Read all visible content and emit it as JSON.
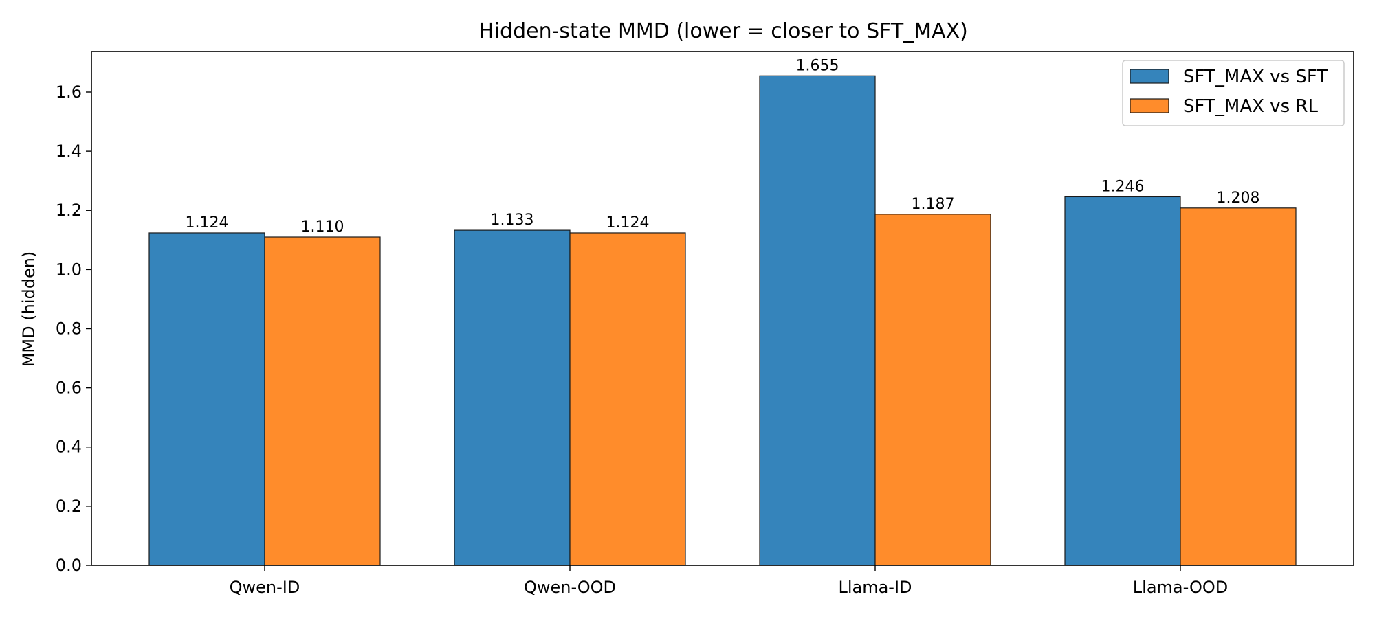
{
  "chart_data": {
    "type": "bar",
    "title": "Hidden-state MMD (lower = closer to SFT_MAX)",
    "xlabel": "",
    "ylabel": "MMD (hidden)",
    "categories": [
      "Qwen-ID",
      "Qwen-OOD",
      "Llama-ID",
      "Llama-OOD"
    ],
    "series": [
      {
        "name": "SFT_MAX vs SFT",
        "color": "#3584bb",
        "values": [
          1.124,
          1.133,
          1.655,
          1.246
        ],
        "labels": [
          "1.124",
          "1.133",
          "1.655",
          "1.246"
        ]
      },
      {
        "name": "SFT_MAX vs RL",
        "color": "#ff8c2b",
        "values": [
          1.11,
          1.124,
          1.187,
          1.208
        ],
        "labels": [
          "1.110",
          "1.124",
          "1.187",
          "1.208"
        ]
      }
    ],
    "ylim": [
      0,
      1.737
    ],
    "yticks": [
      0.0,
      0.2,
      0.4,
      0.6,
      0.8,
      1.0,
      1.2,
      1.4,
      1.6
    ],
    "ytick_labels": [
      "0.0",
      "0.2",
      "0.4",
      "0.6",
      "0.8",
      "1.0",
      "1.2",
      "1.4",
      "1.6"
    ],
    "grid": false,
    "legend_position": "top-right"
  }
}
